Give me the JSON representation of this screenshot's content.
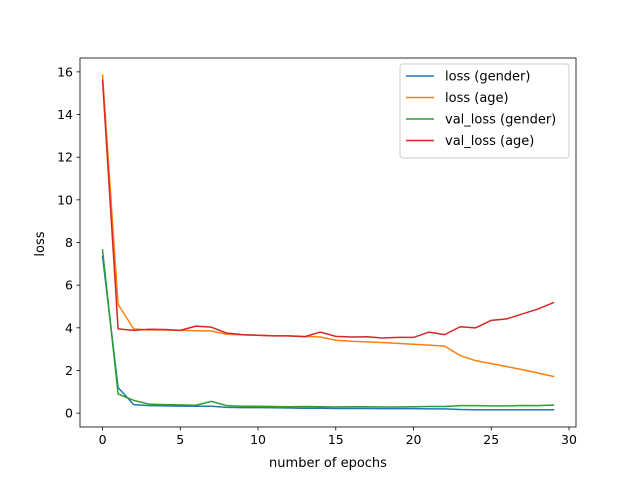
{
  "chart_data": {
    "type": "line",
    "xlabel": "number of epochs",
    "ylabel": "loss",
    "xlim": [
      -1.45,
      30.45
    ],
    "ylim": [
      -0.65,
      16.65
    ],
    "xticks": [
      0,
      5,
      10,
      15,
      20,
      25,
      30
    ],
    "yticks": [
      0,
      2,
      4,
      6,
      8,
      10,
      12,
      14,
      16
    ],
    "grid": false,
    "legend_position": "upper right",
    "x": [
      0,
      1,
      2,
      3,
      4,
      5,
      6,
      7,
      8,
      9,
      10,
      11,
      12,
      13,
      14,
      15,
      16,
      17,
      18,
      19,
      20,
      21,
      22,
      23,
      24,
      25,
      26,
      27,
      28,
      29
    ],
    "series": [
      {
        "name": "loss (gender)",
        "color": "#1f77b4",
        "values": [
          7.35,
          1.2,
          0.4,
          0.35,
          0.34,
          0.33,
          0.32,
          0.32,
          0.27,
          0.26,
          0.26,
          0.25,
          0.24,
          0.23,
          0.23,
          0.22,
          0.22,
          0.22,
          0.21,
          0.21,
          0.21,
          0.2,
          0.2,
          0.17,
          0.16,
          0.16,
          0.16,
          0.16,
          0.16,
          0.16
        ]
      },
      {
        "name": "loss (age)",
        "color": "#ff7f0e",
        "values": [
          15.85,
          5.1,
          3.95,
          3.9,
          3.9,
          3.88,
          3.86,
          3.85,
          3.7,
          3.67,
          3.65,
          3.63,
          3.62,
          3.6,
          3.57,
          3.42,
          3.37,
          3.34,
          3.31,
          3.27,
          3.23,
          3.19,
          3.14,
          2.7,
          2.46,
          2.32,
          2.18,
          2.04,
          1.88,
          1.72
        ]
      },
      {
        "name": "val_loss (gender)",
        "color": "#2ca02c",
        "values": [
          7.65,
          0.9,
          0.6,
          0.42,
          0.4,
          0.39,
          0.37,
          0.55,
          0.35,
          0.32,
          0.32,
          0.31,
          0.3,
          0.31,
          0.3,
          0.29,
          0.3,
          0.3,
          0.29,
          0.29,
          0.3,
          0.31,
          0.31,
          0.35,
          0.35,
          0.34,
          0.34,
          0.36,
          0.35,
          0.38
        ]
      },
      {
        "name": "val_loss (age)",
        "color": "#d62728",
        "values": [
          15.6,
          3.95,
          3.88,
          3.93,
          3.92,
          3.88,
          4.08,
          4.03,
          3.75,
          3.68,
          3.65,
          3.62,
          3.62,
          3.58,
          3.8,
          3.6,
          3.57,
          3.58,
          3.52,
          3.55,
          3.55,
          3.8,
          3.68,
          4.05,
          4.0,
          4.35,
          4.42,
          4.65,
          4.88,
          5.18
        ]
      }
    ]
  }
}
